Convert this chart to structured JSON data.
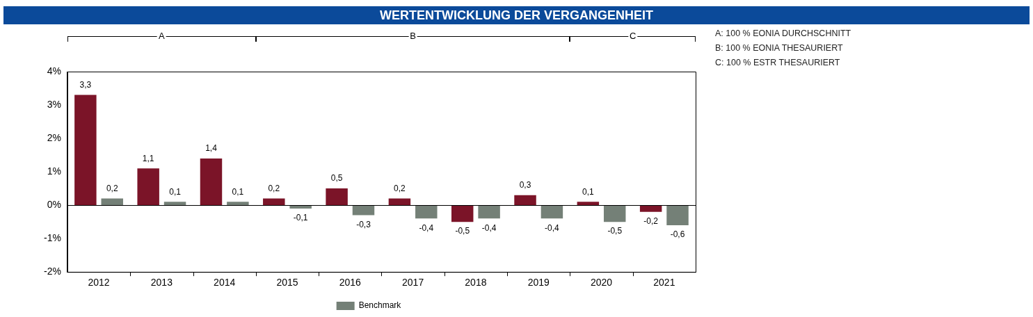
{
  "chart_data": {
    "type": "bar",
    "title": "WERTENTWICKLUNG DER VERGANGENHEIT",
    "categories": [
      "2012",
      "2013",
      "2014",
      "2015",
      "2016",
      "2017",
      "2018",
      "2019",
      "2020",
      "2021"
    ],
    "series": [
      {
        "color": "#7b1428",
        "values": [
          3.3,
          1.1,
          1.4,
          0.2,
          0.5,
          0.2,
          -0.5,
          0.3,
          0.1,
          -0.2
        ],
        "value_labels": [
          "3,3",
          "1,1",
          "1,4",
          "0,2",
          "0,5",
          "0,2",
          "-0,5",
          "0,3",
          "0,1",
          "-0,2"
        ]
      },
      {
        "name": "Benchmark",
        "color": "#748077",
        "values": [
          0.2,
          0.1,
          0.1,
          -0.1,
          -0.3,
          -0.4,
          -0.4,
          -0.4,
          -0.5,
          -0.6
        ],
        "value_labels": [
          "0,2",
          "0,1",
          "0,1",
          "-0,1",
          "-0,3",
          "-0,4",
          "-0,4",
          "-0,4",
          "-0,5",
          "-0,6"
        ]
      }
    ],
    "ylim": [
      -2,
      4
    ],
    "yticks": [
      {
        "value": -2,
        "label": "-2%"
      },
      {
        "value": -1,
        "label": "-1%"
      },
      {
        "value": 0,
        "label": "0%"
      },
      {
        "value": 1,
        "label": "1%"
      },
      {
        "value": 2,
        "label": "2%"
      },
      {
        "value": 3,
        "label": "3%"
      },
      {
        "value": 4,
        "label": "4%"
      }
    ],
    "ref_lines": [
      {
        "axis": "y",
        "value": 0,
        "color": "#000000"
      }
    ],
    "annotations": [
      "A",
      "B",
      "C",
      "A: 100 % EONIA DURCHSCHNITT",
      "B: 100 % EONIA THESAURIERT",
      "C: 100 % ESTR THESAURIERT"
    ],
    "grid": false,
    "legend": "bottom"
  }
}
